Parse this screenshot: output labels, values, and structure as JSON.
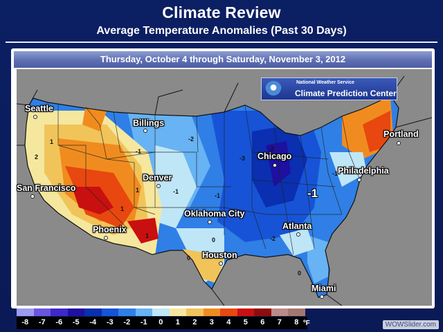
{
  "header": {
    "title": "Climate Review",
    "subtitle": "Average Temperature Anomalies (Past 30 Days)"
  },
  "date_range": "Thursday, October 4 through Saturday, November 3, 2012",
  "credit": {
    "line1": "National Weather Service",
    "line2": "Climate Prediction Center"
  },
  "cities": [
    {
      "name": "Seattle"
    },
    {
      "name": "Billings"
    },
    {
      "name": "Portland"
    },
    {
      "name": "Chicago"
    },
    {
      "name": "Philadelphia"
    },
    {
      "name": "San Francisco"
    },
    {
      "name": "Denver"
    },
    {
      "name": "Oklahoma City"
    },
    {
      "name": "Phoenix"
    },
    {
      "name": "Atlanta"
    },
    {
      "name": "Houston"
    },
    {
      "name": "Miami"
    }
  ],
  "map_annotation": "-1",
  "contour_labels": [
    "1",
    "2",
    "1",
    "1",
    "-1",
    "-2",
    "-1",
    "-1",
    "-3",
    "-2",
    "-2",
    "-1",
    "0",
    "0",
    "0",
    "1"
  ],
  "legend": {
    "labels": [
      "-8",
      "-7",
      "-6",
      "-5",
      "-4",
      "-3",
      "-2",
      "-1",
      "0",
      "1",
      "2",
      "3",
      "4",
      "5",
      "6",
      "7",
      "8"
    ],
    "unit": "ºF",
    "colors": [
      "#9b9bef",
      "#6a55e0",
      "#3f28c8",
      "#1e10a0",
      "#0a2fb0",
      "#1753d6",
      "#2f7fe6",
      "#67b3f3",
      "#bfe6f6",
      "#f6e79e",
      "#f1c45a",
      "#f08c1f",
      "#e8470f",
      "#c81010",
      "#8e0c0c",
      "#bd8a8a",
      "#a3766f"
    ]
  },
  "watermark": "WOWSlider.com"
}
